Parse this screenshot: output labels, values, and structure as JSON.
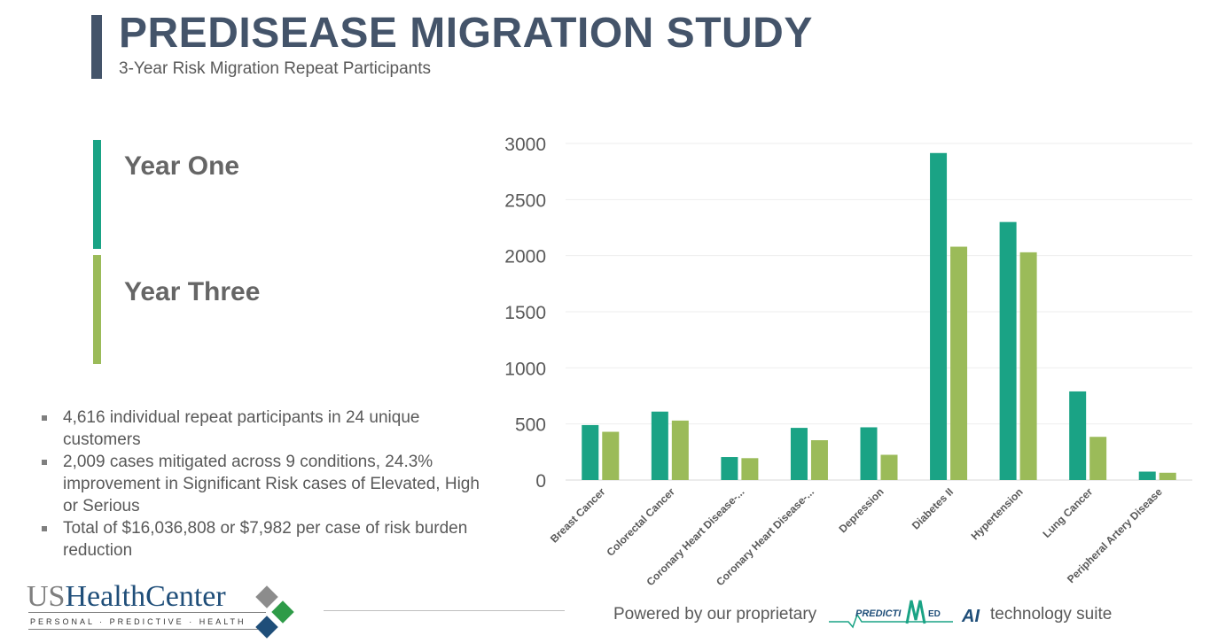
{
  "header": {
    "title": "PREDISEASE MIGRATION STUDY",
    "subtitle": "3-Year Risk Migration Repeat Participants"
  },
  "legend": {
    "year_one": "Year One",
    "year_three": "Year Three"
  },
  "bullets": [
    "4,616 individual repeat participants in 24 unique customers",
    "2,009 cases mitigated across 9 conditions, 24.3% improvement in Significant Risk cases of Elevated, High or Serious",
    "Total of $16,036,808 or $7,982 per case of risk burden reduction"
  ],
  "logo": {
    "us": "US",
    "name": "HealthCenter",
    "tagline": "PERSONAL · PREDICTIVE · HEALTH"
  },
  "footer": {
    "powered": "Powered by our proprietary",
    "pm_logo_left": "PREDICTI",
    "pm_logo_mid": "ED",
    "pm_logo_ai": "AI",
    "suite": "technology suite"
  },
  "colors": {
    "title": "#44546a",
    "year_one": "#1aa385",
    "year_three": "#9bbb59",
    "logo_grey": "#8c8c8c",
    "logo_green": "#2e9b48",
    "logo_blue": "#1f4e79"
  },
  "chart_data": {
    "type": "bar",
    "title": "",
    "xlabel": "",
    "ylabel": "",
    "ylim": [
      0,
      3000
    ],
    "yticks": [
      0,
      500,
      1000,
      1500,
      2000,
      2500,
      3000
    ],
    "categories": [
      "Breast Cancer",
      "Colorectal Cancer",
      "Coronary Heart Disease-...",
      "Coronary Heart Disease-...",
      "Depression",
      "Diabetes II",
      "Hypertension",
      "Lung Cancer",
      "Peripheral Artery Disease"
    ],
    "series": [
      {
        "name": "Year One",
        "values": [
          490,
          610,
          205,
          465,
          470,
          2915,
          2300,
          790,
          75
        ]
      },
      {
        "name": "Year Three",
        "values": [
          430,
          530,
          195,
          355,
          225,
          2080,
          2030,
          385,
          65
        ]
      }
    ]
  }
}
